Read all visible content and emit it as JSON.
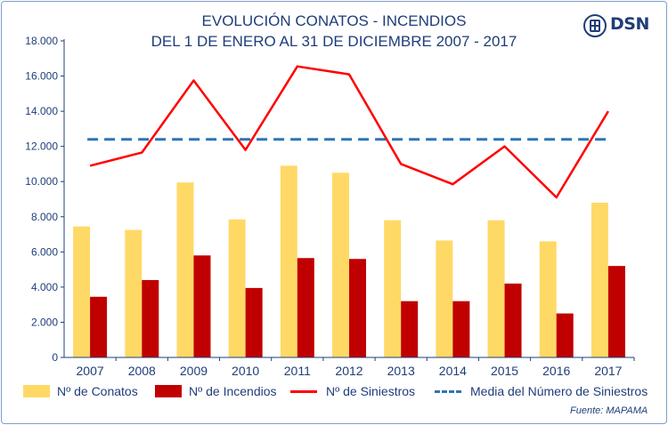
{
  "header": {
    "title_line1": "EVOLUCIÓN CONATOS - INCENDIOS",
    "title_line2": "DEL 1 DE ENERO AL 31 DE DICIEMBRE 2007 - 2017",
    "logo_text": "DSN"
  },
  "legend": {
    "conatos": "Nº de Conatos",
    "incendios": "Nº de Incendios",
    "siniestros": "Nº de Siniestros",
    "media": "Media del Número de Siniestros"
  },
  "source": "Fuente: MAPAMA",
  "colors": {
    "conatos": "#ffd966",
    "incendios": "#c00000",
    "siniestros": "#ff0000",
    "media": "#2e75b6",
    "text": "#1f3d7a"
  },
  "chart_data": {
    "type": "bar",
    "categories": [
      "2007",
      "2008",
      "2009",
      "2010",
      "2011",
      "2012",
      "2013",
      "2014",
      "2015",
      "2016",
      "2017"
    ],
    "series": [
      {
        "name": "Nº de Conatos",
        "type": "bar",
        "values": [
          7450,
          7250,
          9950,
          7850,
          10900,
          10500,
          7800,
          6650,
          7800,
          6600,
          8800
        ]
      },
      {
        "name": "Nº de Incendios",
        "type": "bar",
        "values": [
          3450,
          4400,
          5800,
          3950,
          5650,
          5600,
          3200,
          3200,
          4200,
          2500,
          5200
        ]
      },
      {
        "name": "Nº de Siniestros",
        "type": "line",
        "values": [
          10900,
          11650,
          15750,
          11800,
          16550,
          16100,
          11000,
          9850,
          12000,
          9100,
          14000
        ]
      },
      {
        "name": "Media del Número de Siniestros",
        "type": "line",
        "style": "dashed",
        "values": [
          12400,
          12400,
          12400,
          12400,
          12400,
          12400,
          12400,
          12400,
          12400,
          12400,
          12400
        ]
      }
    ],
    "yticks": [
      "0",
      "2.000",
      "4.000",
      "6.000",
      "8.000",
      "10.000",
      "12.000",
      "14.000",
      "16.000",
      "18.000"
    ],
    "ylim": [
      0,
      18000
    ],
    "grid": false,
    "legend_position": "bottom"
  }
}
